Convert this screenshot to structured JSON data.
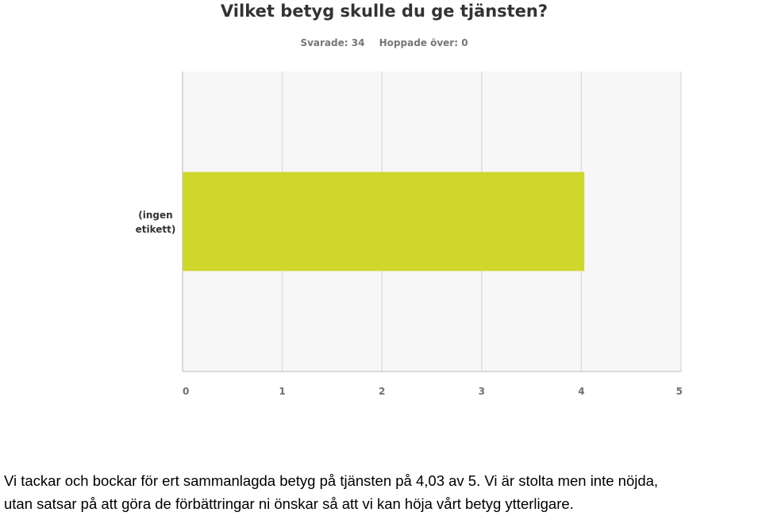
{
  "chart_data": {
    "type": "bar",
    "orientation": "horizontal",
    "title": "Vilket betyg skulle du ge tjänsten?",
    "answered_label": "Svarade: 34",
    "skipped_label": "Hoppade över: 0",
    "categories": [
      "(ingen etikett)"
    ],
    "category_lines": [
      [
        "(ingen",
        "etikett)"
      ]
    ],
    "values": [
      4.03
    ],
    "xlim": [
      0,
      5
    ],
    "xticks": [
      "0",
      "1",
      "2",
      "3",
      "4",
      "5"
    ],
    "grid": true,
    "bar_color": "#cfd62c"
  },
  "caption": {
    "line1": "Vi tackar och bockar för ert sammanlagda betyg på tjänsten på 4,03 av 5. Vi är stolta men inte nöjda,",
    "line2": "utan satsar på att göra de förbättringar ni önskar så att vi kan höja vårt betyg ytterligare."
  }
}
